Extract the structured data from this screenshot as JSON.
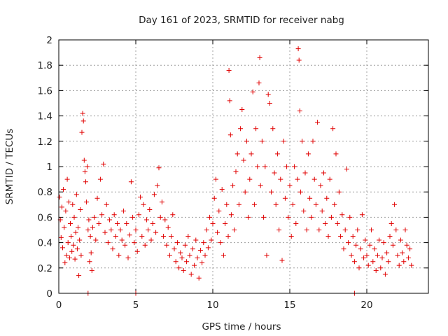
{
  "chart_data": {
    "type": "scatter",
    "title": "Day 161 of 2023, SRMTID for receiver nabg",
    "xlabel": "GPS time / hours",
    "ylabel": "SRMTID / TECUs",
    "xlim": [
      0,
      24
    ],
    "ylim": [
      0,
      2
    ],
    "x_ticks": [
      0,
      5,
      10,
      15,
      20
    ],
    "x_tick_labels": [
      "0",
      "5",
      "10",
      "15",
      "20"
    ],
    "y_ticks": [
      0,
      0.2,
      0.4,
      0.6,
      0.8,
      1,
      1.2,
      1.4,
      1.6,
      1.8,
      2
    ],
    "y_tick_labels": [
      "0",
      "0.2",
      "0.4",
      "0.6",
      "0.8",
      "1",
      "1.2",
      "1.4",
      "1.6",
      "1.8",
      "2"
    ],
    "grid": true,
    "marker": "+",
    "color": "#e00000",
    "series": [
      {
        "name": "SRMTID",
        "points": [
          [
            0.05,
            0.76
          ],
          [
            0.1,
            0.58
          ],
          [
            0.15,
            0.44
          ],
          [
            0.2,
            0.68
          ],
          [
            0.25,
            0.36
          ],
          [
            0.3,
            0.82
          ],
          [
            0.35,
            0.52
          ],
          [
            0.4,
            0.24
          ],
          [
            0.45,
            0.65
          ],
          [
            0.5,
            0.3
          ],
          [
            0.55,
            0.9
          ],
          [
            0.6,
            0.4
          ],
          [
            0.65,
            0.72
          ],
          [
            0.7,
            0.28
          ],
          [
            0.75,
            0.55
          ],
          [
            0.8,
            0.45
          ],
          [
            0.85,
            0.33
          ],
          [
            0.9,
            0.7
          ],
          [
            0.95,
            0.38
          ],
          [
            1.0,
            0.6
          ],
          [
            1.05,
            0.27
          ],
          [
            1.1,
            0.48
          ],
          [
            1.15,
            0.78
          ],
          [
            1.2,
            0.35
          ],
          [
            1.25,
            0.52
          ],
          [
            1.3,
            0.14
          ],
          [
            1.35,
            0.42
          ],
          [
            1.4,
            0.66
          ],
          [
            1.45,
            0.3
          ],
          [
            1.5,
            1.27
          ],
          [
            1.55,
            1.42
          ],
          [
            1.6,
            1.36
          ],
          [
            1.65,
            1.05
          ],
          [
            1.7,
            0.96
          ],
          [
            1.75,
            0.88
          ],
          [
            1.8,
            0.72
          ],
          [
            1.85,
            1.0
          ],
          [
            1.9,
            0.5
          ],
          [
            1.95,
            0.58
          ],
          [
            2.0,
            0.25
          ],
          [
            2.05,
            0.45
          ],
          [
            2.1,
            0.32
          ],
          [
            2.15,
            0.18
          ],
          [
            2.2,
            0.52
          ],
          [
            2.3,
            0.6
          ],
          [
            2.4,
            0.42
          ],
          [
            2.5,
            0.75
          ],
          [
            2.6,
            0.55
          ],
          [
            2.7,
            0.9
          ],
          [
            2.8,
            0.62
          ],
          [
            2.9,
            1.02
          ],
          [
            3.0,
            0.48
          ],
          [
            3.1,
            0.7
          ],
          [
            3.2,
            0.4
          ],
          [
            3.3,
            0.58
          ],
          [
            3.4,
            0.5
          ],
          [
            3.5,
            0.35
          ],
          [
            3.6,
            0.62
          ],
          [
            3.7,
            0.45
          ],
          [
            3.8,
            0.55
          ],
          [
            3.9,
            0.3
          ],
          [
            4.0,
            0.5
          ],
          [
            4.1,
            0.42
          ],
          [
            4.2,
            0.65
          ],
          [
            4.3,
            0.38
          ],
          [
            4.4,
            0.55
          ],
          [
            4.5,
            0.28
          ],
          [
            4.6,
            0.46
          ],
          [
            4.7,
            0.88
          ],
          [
            4.8,
            0.6
          ],
          [
            4.9,
            0.4
          ],
          [
            5.0,
            0.5
          ],
          [
            5.1,
            0.33
          ],
          [
            5.2,
            0.62
          ],
          [
            5.3,
            0.76
          ],
          [
            5.4,
            0.45
          ],
          [
            5.5,
            0.7
          ],
          [
            5.6,
            0.38
          ],
          [
            5.7,
            0.58
          ],
          [
            5.8,
            0.5
          ],
          [
            5.9,
            0.66
          ],
          [
            6.0,
            0.42
          ],
          [
            6.1,
            0.55
          ],
          [
            6.2,
            0.78
          ],
          [
            6.3,
            0.48
          ],
          [
            6.4,
            0.85
          ],
          [
            6.5,
            0.99
          ],
          [
            6.6,
            0.6
          ],
          [
            6.7,
            0.72
          ],
          [
            6.8,
            0.45
          ],
          [
            6.9,
            0.58
          ],
          [
            7.0,
            0.38
          ],
          [
            7.1,
            0.52
          ],
          [
            7.2,
            0.3
          ],
          [
            7.3,
            0.45
          ],
          [
            7.4,
            0.62
          ],
          [
            7.5,
            0.35
          ],
          [
            7.6,
            0.25
          ],
          [
            7.7,
            0.4
          ],
          [
            7.8,
            0.2
          ],
          [
            7.9,
            0.32
          ],
          [
            8.0,
            0.28
          ],
          [
            8.1,
            0.18
          ],
          [
            8.2,
            0.38
          ],
          [
            8.3,
            0.25
          ],
          [
            8.4,
            0.45
          ],
          [
            8.5,
            0.3
          ],
          [
            8.6,
            0.15
          ],
          [
            8.7,
            0.35
          ],
          [
            8.8,
            0.22
          ],
          [
            8.9,
            0.42
          ],
          [
            9.0,
            0.28
          ],
          [
            9.1,
            0.12
          ],
          [
            9.2,
            0.34
          ],
          [
            9.3,
            0.24
          ],
          [
            9.4,
            0.4
          ],
          [
            9.5,
            0.3
          ],
          [
            9.6,
            0.5
          ],
          [
            9.7,
            0.36
          ],
          [
            9.8,
            0.6
          ],
          [
            9.9,
            0.42
          ],
          [
            10.0,
            0.55
          ],
          [
            10.1,
            0.75
          ],
          [
            10.2,
            0.9
          ],
          [
            10.3,
            0.48
          ],
          [
            10.4,
            0.65
          ],
          [
            10.5,
            0.4
          ],
          [
            10.6,
            0.82
          ],
          [
            10.7,
            0.3
          ],
          [
            10.8,
            0.55
          ],
          [
            10.9,
            0.7
          ],
          [
            11.0,
            0.45
          ],
          [
            11.05,
            1.76
          ],
          [
            11.1,
            1.52
          ],
          [
            11.15,
            1.25
          ],
          [
            11.2,
            0.62
          ],
          [
            11.3,
            0.85
          ],
          [
            11.4,
            0.5
          ],
          [
            11.5,
            0.96
          ],
          [
            11.6,
            1.1
          ],
          [
            11.7,
            0.7
          ],
          [
            11.8,
            1.3
          ],
          [
            11.9,
            1.45
          ],
          [
            12.0,
            1.05
          ],
          [
            12.1,
            0.8
          ],
          [
            12.2,
            1.2
          ],
          [
            12.3,
            0.6
          ],
          [
            12.4,
            0.9
          ],
          [
            12.5,
            1.1
          ],
          [
            12.6,
            1.59
          ],
          [
            12.7,
            0.7
          ],
          [
            12.8,
            1.3
          ],
          [
            12.9,
            1.0
          ],
          [
            13.0,
            1.66
          ],
          [
            13.05,
            1.86
          ],
          [
            13.1,
            0.85
          ],
          [
            13.2,
            1.2
          ],
          [
            13.3,
            0.6
          ],
          [
            13.4,
            1.0
          ],
          [
            13.5,
            0.3
          ],
          [
            13.6,
            1.57
          ],
          [
            13.7,
            1.5
          ],
          [
            13.8,
            0.8
          ],
          [
            13.9,
            1.3
          ],
          [
            14.0,
            0.95
          ],
          [
            14.1,
            0.7
          ],
          [
            14.2,
            1.1
          ],
          [
            14.3,
            0.5
          ],
          [
            14.4,
            0.9
          ],
          [
            14.5,
            0.26
          ],
          [
            14.6,
            1.2
          ],
          [
            14.7,
            0.75
          ],
          [
            14.8,
            1.0
          ],
          [
            14.9,
            0.6
          ],
          [
            15.0,
            0.85
          ],
          [
            15.1,
            0.45
          ],
          [
            15.2,
            0.7
          ],
          [
            15.3,
            1.0
          ],
          [
            15.4,
            0.55
          ],
          [
            15.5,
            0.9
          ],
          [
            15.55,
            1.93
          ],
          [
            15.6,
            1.84
          ],
          [
            15.65,
            1.44
          ],
          [
            15.7,
            0.8
          ],
          [
            15.8,
            1.2
          ],
          [
            15.9,
            0.65
          ],
          [
            16.0,
            0.95
          ],
          [
            16.1,
            0.5
          ],
          [
            16.2,
            1.1
          ],
          [
            16.3,
            0.75
          ],
          [
            16.4,
            0.6
          ],
          [
            16.5,
            1.2
          ],
          [
            16.6,
            0.9
          ],
          [
            16.7,
            0.7
          ],
          [
            16.8,
            1.35
          ],
          [
            16.9,
            0.5
          ],
          [
            17.0,
            0.85
          ],
          [
            17.1,
            0.65
          ],
          [
            17.2,
            0.95
          ],
          [
            17.3,
            0.55
          ],
          [
            17.4,
            0.75
          ],
          [
            17.5,
            0.45
          ],
          [
            17.6,
            0.9
          ],
          [
            17.7,
            0.6
          ],
          [
            17.8,
            1.3
          ],
          [
            17.9,
            0.7
          ],
          [
            18.0,
            1.1
          ],
          [
            18.1,
            0.55
          ],
          [
            18.2,
            0.8
          ],
          [
            18.3,
            0.45
          ],
          [
            18.4,
            0.62
          ],
          [
            18.5,
            0.35
          ],
          [
            18.6,
            0.5
          ],
          [
            18.7,
            0.98
          ],
          [
            18.8,
            0.4
          ],
          [
            18.9,
            0.6
          ],
          [
            19.0,
            0.3
          ],
          [
            19.1,
            0.45
          ],
          [
            19.2,
            0.25
          ],
          [
            19.3,
            0.38
          ],
          [
            19.4,
            0.5
          ],
          [
            19.5,
            0.2
          ],
          [
            19.6,
            0.35
          ],
          [
            19.7,
            0.62
          ],
          [
            19.8,
            0.28
          ],
          [
            19.9,
            0.42
          ],
          [
            20.0,
            0.3
          ],
          [
            20.1,
            0.22
          ],
          [
            20.2,
            0.38
          ],
          [
            20.3,
            0.5
          ],
          [
            20.4,
            0.25
          ],
          [
            20.5,
            0.35
          ],
          [
            20.6,
            0.18
          ],
          [
            20.7,
            0.3
          ],
          [
            20.8,
            0.42
          ],
          [
            20.9,
            0.2
          ],
          [
            21.0,
            0.28
          ],
          [
            21.1,
            0.4
          ],
          [
            21.2,
            0.15
          ],
          [
            21.3,
            0.32
          ],
          [
            21.4,
            0.25
          ],
          [
            21.5,
            0.45
          ],
          [
            21.6,
            0.55
          ],
          [
            21.7,
            0.38
          ],
          [
            21.8,
            0.7
          ],
          [
            21.9,
            0.5
          ],
          [
            22.0,
            0.3
          ],
          [
            22.1,
            0.22
          ],
          [
            22.2,
            0.42
          ],
          [
            22.3,
            0.32
          ],
          [
            22.4,
            0.25
          ],
          [
            22.5,
            0.5
          ],
          [
            22.6,
            0.38
          ],
          [
            22.7,
            0.28
          ],
          [
            22.8,
            0.35
          ],
          [
            22.9,
            0.22
          ]
        ],
        "zero_points": [
          [
            1.9,
            0.0
          ],
          [
            5.0,
            0.0
          ],
          [
            19.2,
            0.0
          ]
        ]
      }
    ]
  }
}
